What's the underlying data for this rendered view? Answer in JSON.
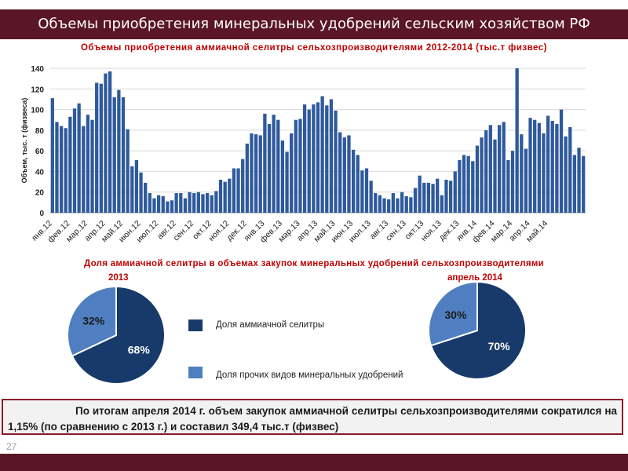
{
  "slide": {
    "title": "Объемы приобретения минеральных удобрений сельским хозяйством РФ",
    "page_number": "27",
    "summary": "По итогам апреля 2014 г. объем закупок аммиачной селитры сельхозпроизводителями сократился на 1,15% (по сравнению с 2013 г.) и составил 349,4 тыс.т (физвес)",
    "colors": {
      "header": "#5a1526",
      "bar": "#2e5a9c",
      "pie_dark": "#183a6b",
      "pie_light": "#4f7fc0",
      "title_red": "#c00000"
    }
  },
  "chart_data": [
    {
      "type": "bar",
      "title": "Объемы приобретения аммиачной селитры сельхозпроизводителями 2012-2014  (тыс.т физвес)",
      "ylabel": "Объем, тыс. т (физвеса)",
      "ylim": [
        0,
        140
      ],
      "yticks": [
        0,
        20,
        40,
        60,
        80,
        100,
        120,
        140
      ],
      "grid": true,
      "xtick_labels": [
        "янв.12",
        "фев.12",
        "мар.12",
        "апр.12",
        "май.12",
        "июн.12",
        "июл.12",
        "авг.12",
        "сен.12",
        "окт.12",
        "ноя.12",
        "дек.12",
        "янв.13",
        "фев.13",
        "мар.13",
        "апр.13",
        "май.13",
        "июн.13",
        "июл.13",
        "авг.13",
        "сен.13",
        "окт.13",
        "ноя.13",
        "дек.13",
        "янв.14",
        "фев.14",
        "мар.14",
        "апр.14",
        "май.14"
      ],
      "values": [
        111,
        88,
        84,
        82,
        93,
        101,
        106,
        84,
        95,
        90,
        126,
        125,
        135,
        137,
        112,
        119,
        112,
        81,
        45,
        51,
        39,
        29,
        19,
        14,
        17,
        16,
        11,
        12,
        19,
        19,
        14,
        20,
        19,
        20,
        18,
        19,
        17,
        21,
        32,
        30,
        33,
        43,
        43,
        52,
        67,
        77,
        76,
        75,
        96,
        86,
        95,
        90,
        70,
        59,
        77,
        90,
        91,
        105,
        100,
        105,
        107,
        113,
        104,
        110,
        99,
        78,
        73,
        75,
        61,
        56,
        41,
        43,
        31,
        19,
        17,
        14,
        13,
        19,
        14,
        20,
        16,
        15,
        24,
        36,
        29,
        29,
        28,
        33,
        17,
        32,
        31,
        40,
        51,
        56,
        55,
        50,
        65,
        73,
        80,
        85,
        71,
        85,
        88,
        51,
        60,
        140,
        76,
        62,
        92,
        90,
        87,
        77,
        94,
        89,
        86,
        100,
        74,
        83,
        56,
        63,
        55
      ]
    },
    {
      "type": "pie",
      "title": "Доля  аммиачной селитры в объемах закупок минеральных удобрений  сельхозпроизводителями",
      "subtitle": "2013",
      "slices": [
        {
          "label": "Доля аммиачной селитры",
          "value": 68,
          "text": "68%"
        },
        {
          "label": "Доля прочих видов минеральных удобрений",
          "value": 32,
          "text": "32%"
        }
      ]
    },
    {
      "type": "pie",
      "subtitle": "апрель 2014",
      "slices": [
        {
          "label": "Доля аммиачной селитры",
          "value": 70,
          "text": "70%"
        },
        {
          "label": "Доля прочих видов минеральных удобрений",
          "value": 30,
          "text": "30%"
        }
      ]
    }
  ],
  "legend": [
    {
      "label": "Доля аммиачной селитры",
      "color": "#183a6b"
    },
    {
      "label": "Доля прочих видов минеральных удобрений",
      "color": "#4f7fc0"
    }
  ]
}
